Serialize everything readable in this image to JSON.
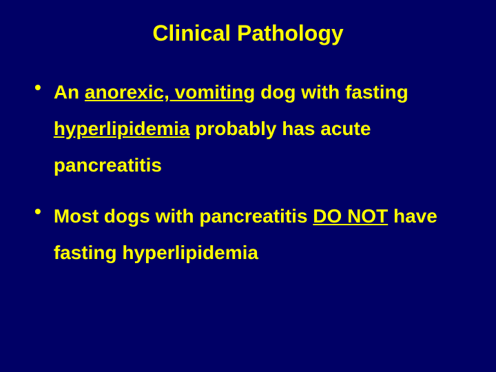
{
  "slide": {
    "background_color": "#000066",
    "text_color": "#ffff00",
    "title": "Clinical Pathology",
    "title_fontsize": 32,
    "body_fontsize": 28,
    "font_family": "Arial",
    "font_weight": "bold",
    "bullets": [
      {
        "segments": [
          {
            "text": "An ",
            "underline": false
          },
          {
            "text": "anorexic, vomiting",
            "underline": true
          },
          {
            "text": " dog with fasting ",
            "underline": false
          },
          {
            "text": "hyperlipidemia",
            "underline": true
          },
          {
            "text": " probably has acute pancreatitis",
            "underline": false
          }
        ]
      },
      {
        "segments": [
          {
            "text": "Most dogs with pancreatitis ",
            "underline": false
          },
          {
            "text": "DO NOT",
            "underline": true
          },
          {
            "text": " have fasting hyperlipidemia",
            "underline": false
          }
        ]
      }
    ],
    "bullet_marker": "•"
  }
}
